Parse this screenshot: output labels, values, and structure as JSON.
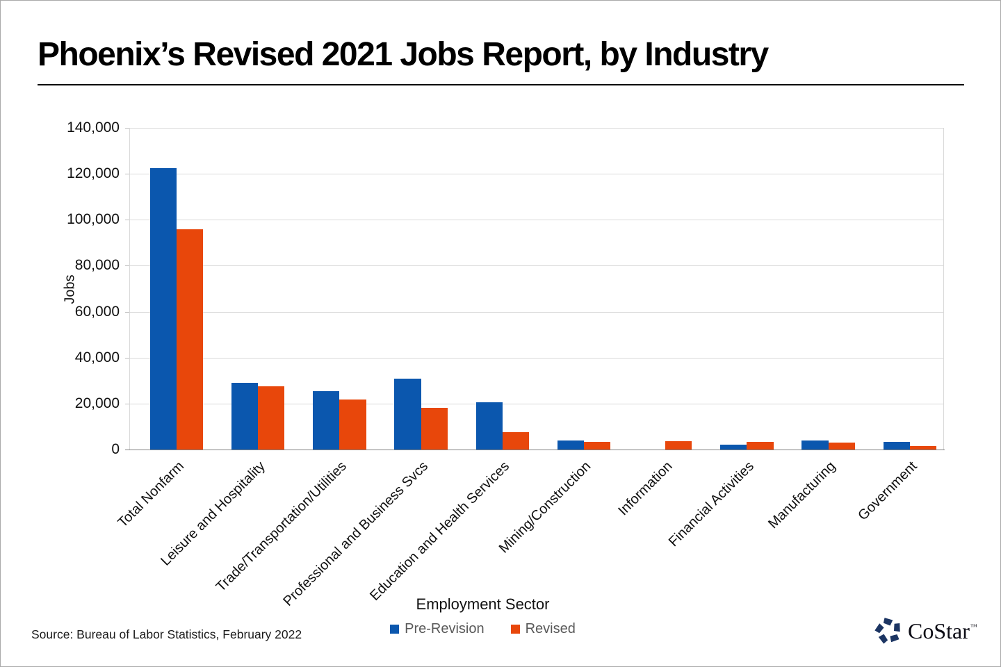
{
  "page": {
    "title": "Phoenix’s Revised 2021 Jobs Report, by Industry",
    "source": "Source: Bureau of Labor Statistics, February 2022"
  },
  "brand": {
    "name": "CoStar",
    "trademark": "™",
    "icon": "costar-pinwheel-icon",
    "icon_color": "#1c3563"
  },
  "chart_data": {
    "type": "bar",
    "title": "Phoenix’s Revised 2021 Jobs Report, by Industry",
    "xlabel": "Employment Sector",
    "ylabel": "Jobs",
    "ylim": [
      0,
      140000
    ],
    "ytick_step": 20000,
    "ytick_labels": [
      "0",
      "20,000",
      "40,000",
      "60,000",
      "80,000",
      "100,000",
      "120,000",
      "140,000"
    ],
    "grid": true,
    "legend_position": "bottom",
    "categories": [
      "Total Nonfarm",
      "Leisure and Hospitality",
      "Trade/Transportation/Utilities",
      "Professional and Business Svcs",
      "Education and Health Services",
      "Mining/Construction",
      "Information",
      "Financial Activities",
      "Manufacturing",
      "Government"
    ],
    "series": [
      {
        "name": "Pre-Revision",
        "color": "#0b57ae",
        "values": [
          122500,
          29000,
          25500,
          30700,
          20500,
          3800,
          0,
          2200,
          4000,
          3400
        ]
      },
      {
        "name": "Revised",
        "color": "#e8470b",
        "values": [
          95900,
          27500,
          21900,
          18100,
          7600,
          3400,
          3600,
          3300,
          3000,
          1600
        ]
      }
    ],
    "colors": {
      "gridline": "#d9d9d9",
      "axis": "#808080",
      "tick": "#bfbfbf"
    }
  }
}
